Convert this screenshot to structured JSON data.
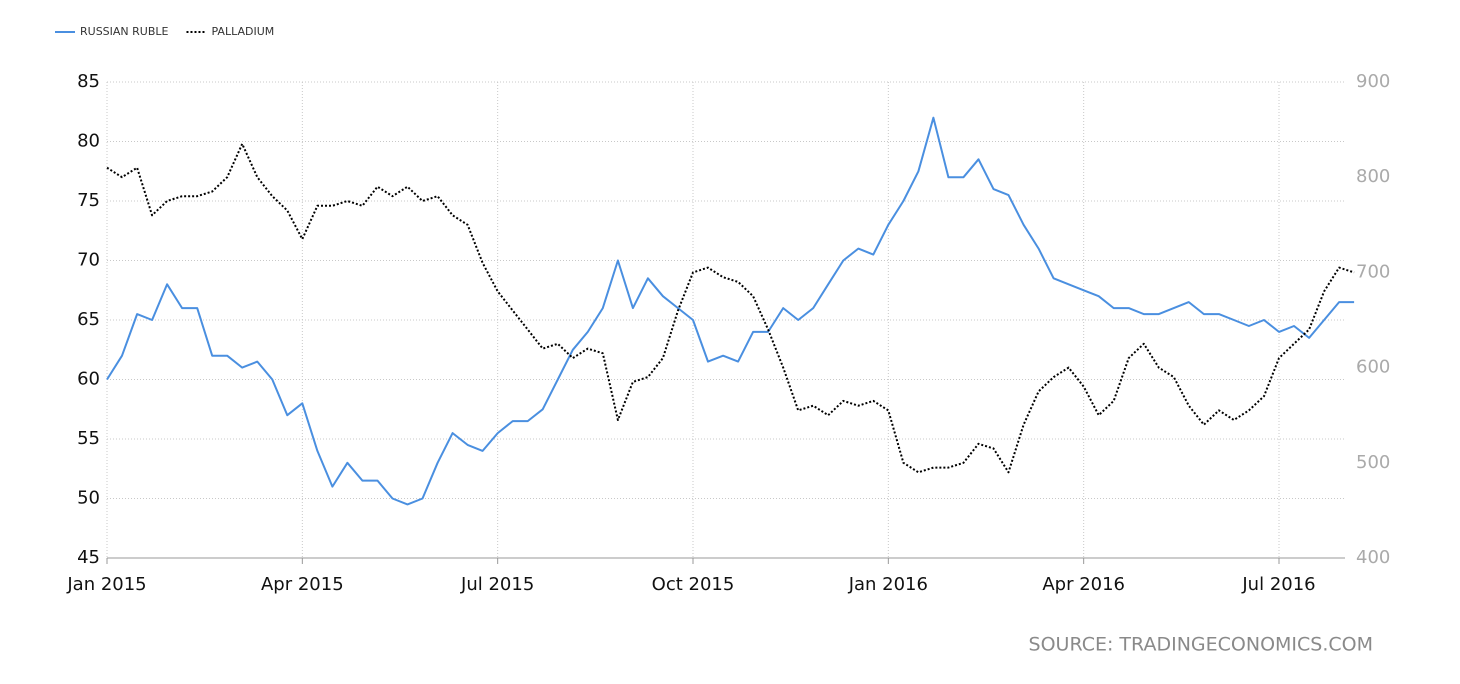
{
  "chart_data": {
    "type": "line",
    "source": "SOURCE: TRADINGECONOMICS.COM",
    "categories": [
      "Jan 2015",
      null,
      null,
      null,
      null,
      null,
      null,
      null,
      null,
      null,
      null,
      null,
      null,
      "Apr 2015",
      null,
      null,
      null,
      null,
      null,
      null,
      null,
      null,
      null,
      null,
      null,
      null,
      "Jul 2015",
      null,
      null,
      null,
      null,
      null,
      null,
      null,
      null,
      null,
      null,
      null,
      null,
      "Oct 2015",
      null,
      null,
      null,
      null,
      null,
      null,
      null,
      null,
      null,
      null,
      null,
      null,
      "Jan 2016",
      null,
      null,
      null,
      null,
      null,
      null,
      null,
      null,
      null,
      null,
      null,
      null,
      "Apr 2016",
      null,
      null,
      null,
      null,
      null,
      null,
      null,
      null,
      null,
      null,
      null,
      null,
      "Jul 2016",
      null,
      null,
      null,
      null,
      null
    ],
    "series": [
      {
        "name": "RUSSIAN RUBLE",
        "color": "#4a8fe0",
        "line_style": "solid",
        "axis": "y",
        "values": [
          60,
          62,
          65.5,
          65,
          68,
          66,
          66,
          62,
          62,
          61,
          61.5,
          60,
          57,
          58,
          54,
          51,
          53,
          51.5,
          51.5,
          50,
          49.5,
          50,
          53,
          55.5,
          54.5,
          54,
          55.5,
          56.5,
          56.5,
          57.5,
          60,
          62.5,
          64,
          66,
          70,
          66,
          68.5,
          67,
          66,
          65,
          61.5,
          62,
          61.5,
          64,
          64,
          66,
          65,
          66,
          68,
          70,
          71,
          70.5,
          73,
          75,
          77.5,
          82,
          77,
          77,
          78.5,
          76,
          75.5,
          73,
          71,
          68.5,
          68,
          67.5,
          67,
          66,
          66,
          65.5,
          65.5,
          66,
          66.5,
          65.5,
          65.5,
          65,
          64.5,
          65,
          64,
          64.5,
          63.5,
          65,
          66.5,
          66.5
        ]
      },
      {
        "name": "PALLADIUM",
        "color": "#000000",
        "line_style": "dotted",
        "axis": "y2",
        "values": [
          810,
          800,
          810,
          760,
          775,
          780,
          780,
          785,
          800,
          835,
          800,
          780,
          765,
          735,
          770,
          770,
          775,
          770,
          790,
          780,
          790,
          775,
          780,
          760,
          750,
          710,
          680,
          660,
          640,
          620,
          625,
          610,
          620,
          615,
          545,
          585,
          590,
          610,
          660,
          700,
          705,
          695,
          690,
          675,
          640,
          600,
          555,
          560,
          550,
          565,
          560,
          565,
          555,
          500,
          490,
          495,
          495,
          500,
          520,
          515,
          490,
          540,
          575,
          590,
          600,
          580,
          550,
          565,
          610,
          625,
          600,
          590,
          560,
          540,
          555,
          545,
          555,
          570,
          610,
          625,
          640,
          680,
          705,
          700
        ]
      }
    ],
    "ylim": [
      45,
      85
    ],
    "yticks": [
      45,
      50,
      55,
      60,
      65,
      70,
      75,
      80,
      85
    ],
    "y2lim": [
      400,
      900
    ],
    "y2ticks": [
      400,
      500,
      600,
      700,
      800,
      900
    ],
    "grid": true,
    "legend": "top-left"
  }
}
